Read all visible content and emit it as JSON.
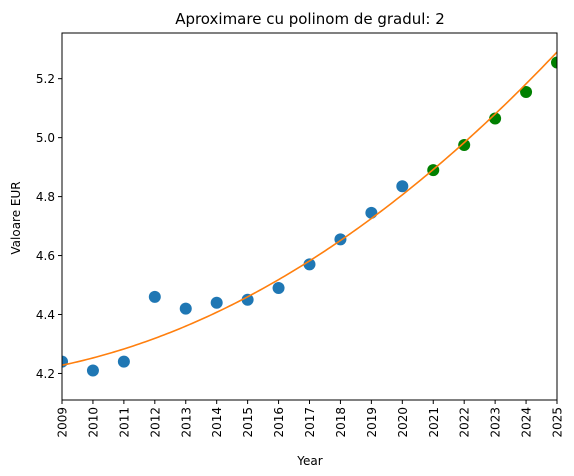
{
  "chart_data": {
    "type": "scatter",
    "title": "Aproximare cu polinom de gradul: 2",
    "xlabel": "Year",
    "ylabel": "Valoare EUR",
    "xlim": [
      2009,
      2025
    ],
    "ylim": [
      4.11,
      5.355
    ],
    "x_ticks": [
      "2009",
      "2010",
      "2011",
      "2012",
      "2013",
      "2014",
      "2015",
      "2016",
      "2017",
      "2018",
      "2019",
      "2020",
      "2021",
      "2022",
      "2023",
      "2024",
      "2025"
    ],
    "y_ticks": [
      "4.2",
      "4.4",
      "4.6",
      "4.8",
      "5.0",
      "5.2"
    ],
    "grid": false,
    "series": [
      {
        "kind": "observed",
        "color": "#1f77b4",
        "x": [
          2009,
          2010,
          2011,
          2012,
          2013,
          2014,
          2015,
          2016,
          2017,
          2018,
          2019,
          2020
        ],
        "y": [
          4.24,
          4.21,
          4.24,
          4.46,
          4.42,
          4.44,
          4.45,
          4.49,
          4.57,
          4.655,
          4.745,
          4.835
        ]
      },
      {
        "kind": "predicted",
        "color": "#008000",
        "x": [
          2021,
          2022,
          2023,
          2024,
          2025
        ],
        "y": [
          4.89,
          4.975,
          5.065,
          5.155,
          5.255
        ]
      },
      {
        "kind": "fit",
        "color": "#ff7f0e",
        "coefficients": {
          "a": 0.00277,
          "b": 0.02209,
          "c": 4.2279,
          "x0": 2009
        },
        "x": [
          2009,
          2010,
          2011,
          2012,
          2013,
          2014,
          2015,
          2016,
          2017,
          2018,
          2019,
          2020,
          2021,
          2022,
          2023,
          2024,
          2025
        ],
        "y": [
          4.228,
          4.253,
          4.283,
          4.319,
          4.361,
          4.408,
          4.46,
          4.518,
          4.582,
          4.651,
          4.726,
          4.806,
          4.892,
          4.983,
          5.08,
          5.182,
          5.29
        ]
      }
    ]
  }
}
